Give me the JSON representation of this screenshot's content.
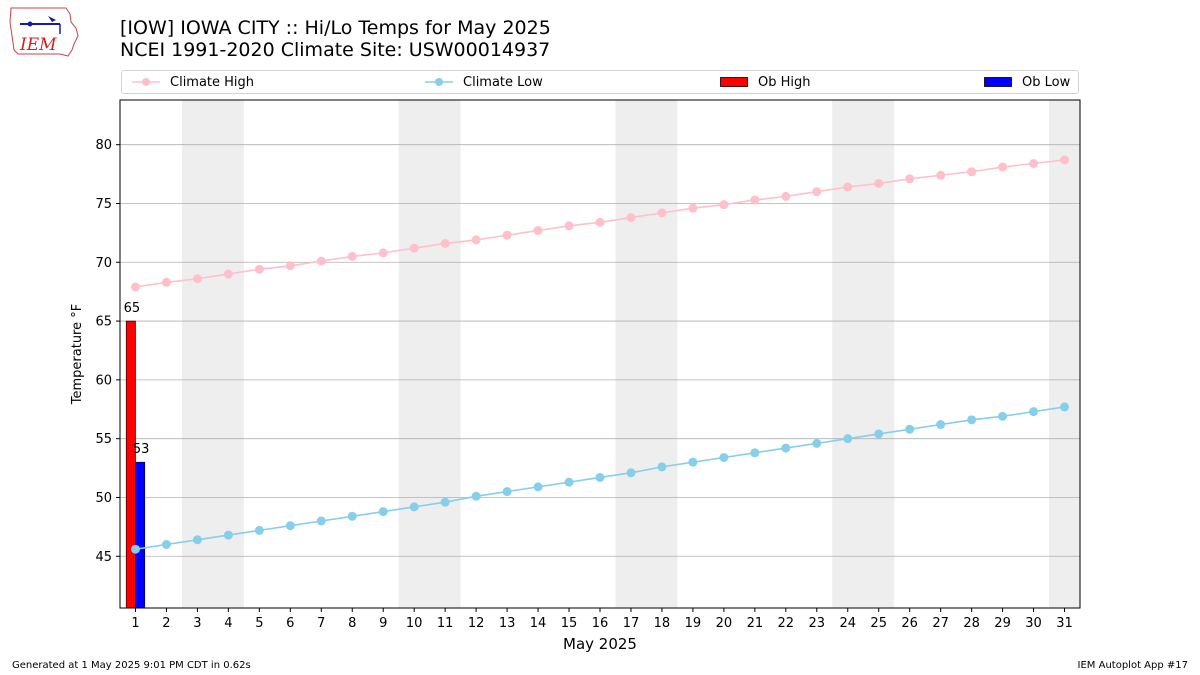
{
  "header": {
    "title_line1": "[IOW] IOWA CITY :: Hi/Lo Temps for May 2025",
    "title_line2": "NCEI 1991-2020 Climate Site: USW00014937"
  },
  "logo": {
    "text": "IEM",
    "icon": "iowa-state-outline-icon"
  },
  "legend": {
    "climate_high": "Climate High",
    "climate_low": "Climate Low",
    "ob_high": "Ob High",
    "ob_low": "Ob Low"
  },
  "footer": {
    "generated": "Generated at 1 May 2025 9:01 PM CDT in 0.62s",
    "app": "IEM Autoplot App #17"
  },
  "colors": {
    "climate_high": "#ffc0cb",
    "climate_low": "#87ceeb",
    "ob_high": "#ff0000",
    "ob_low": "#0000ff",
    "weekend_shade": "#eeeeee",
    "grid": "#b0b0b0"
  },
  "chart_data": {
    "type": "line",
    "title": "[IOW] IOWA CITY :: Hi/Lo Temps for May 2025",
    "subtitle": "NCEI 1991-2020 Climate Site: USW00014937",
    "xlabel": "May 2025",
    "ylabel": "Temperature °F",
    "x": [
      1,
      2,
      3,
      4,
      5,
      6,
      7,
      8,
      9,
      10,
      11,
      12,
      13,
      14,
      15,
      16,
      17,
      18,
      19,
      20,
      21,
      22,
      23,
      24,
      25,
      26,
      27,
      28,
      29,
      30,
      31
    ],
    "xlim": [
      0.5,
      31.5
    ],
    "ylim": [
      40.6,
      83.8
    ],
    "yticks": [
      45,
      50,
      55,
      60,
      65,
      70,
      75,
      80
    ],
    "grid": "horizontal",
    "legend_position": "top",
    "weekend_shaded_days": [
      [
        3,
        4
      ],
      [
        10,
        11
      ],
      [
        17,
        18
      ],
      [
        24,
        25
      ],
      [
        31,
        31
      ]
    ],
    "series": [
      {
        "name": "Climate High",
        "kind": "line",
        "values": [
          67.9,
          68.3,
          68.6,
          69.0,
          69.4,
          69.7,
          70.1,
          70.5,
          70.8,
          71.2,
          71.6,
          71.9,
          72.3,
          72.7,
          73.1,
          73.4,
          73.8,
          74.2,
          74.6,
          74.9,
          75.3,
          75.6,
          76.0,
          76.4,
          76.7,
          77.1,
          77.4,
          77.7,
          78.1,
          78.4,
          78.7
        ]
      },
      {
        "name": "Climate Low",
        "kind": "line",
        "values": [
          45.6,
          46.0,
          46.4,
          46.8,
          47.2,
          47.6,
          48.0,
          48.4,
          48.8,
          49.2,
          49.6,
          50.1,
          50.5,
          50.9,
          51.3,
          51.7,
          52.1,
          52.6,
          53.0,
          53.4,
          53.8,
          54.2,
          54.6,
          55.0,
          55.4,
          55.8,
          56.2,
          56.6,
          56.9,
          57.3,
          57.7
        ]
      },
      {
        "name": "Ob High",
        "kind": "bar",
        "x": [
          1
        ],
        "values": [
          65
        ],
        "labels": [
          "65"
        ]
      },
      {
        "name": "Ob Low",
        "kind": "bar",
        "x": [
          1
        ],
        "values": [
          53
        ],
        "labels": [
          "53"
        ]
      }
    ]
  }
}
